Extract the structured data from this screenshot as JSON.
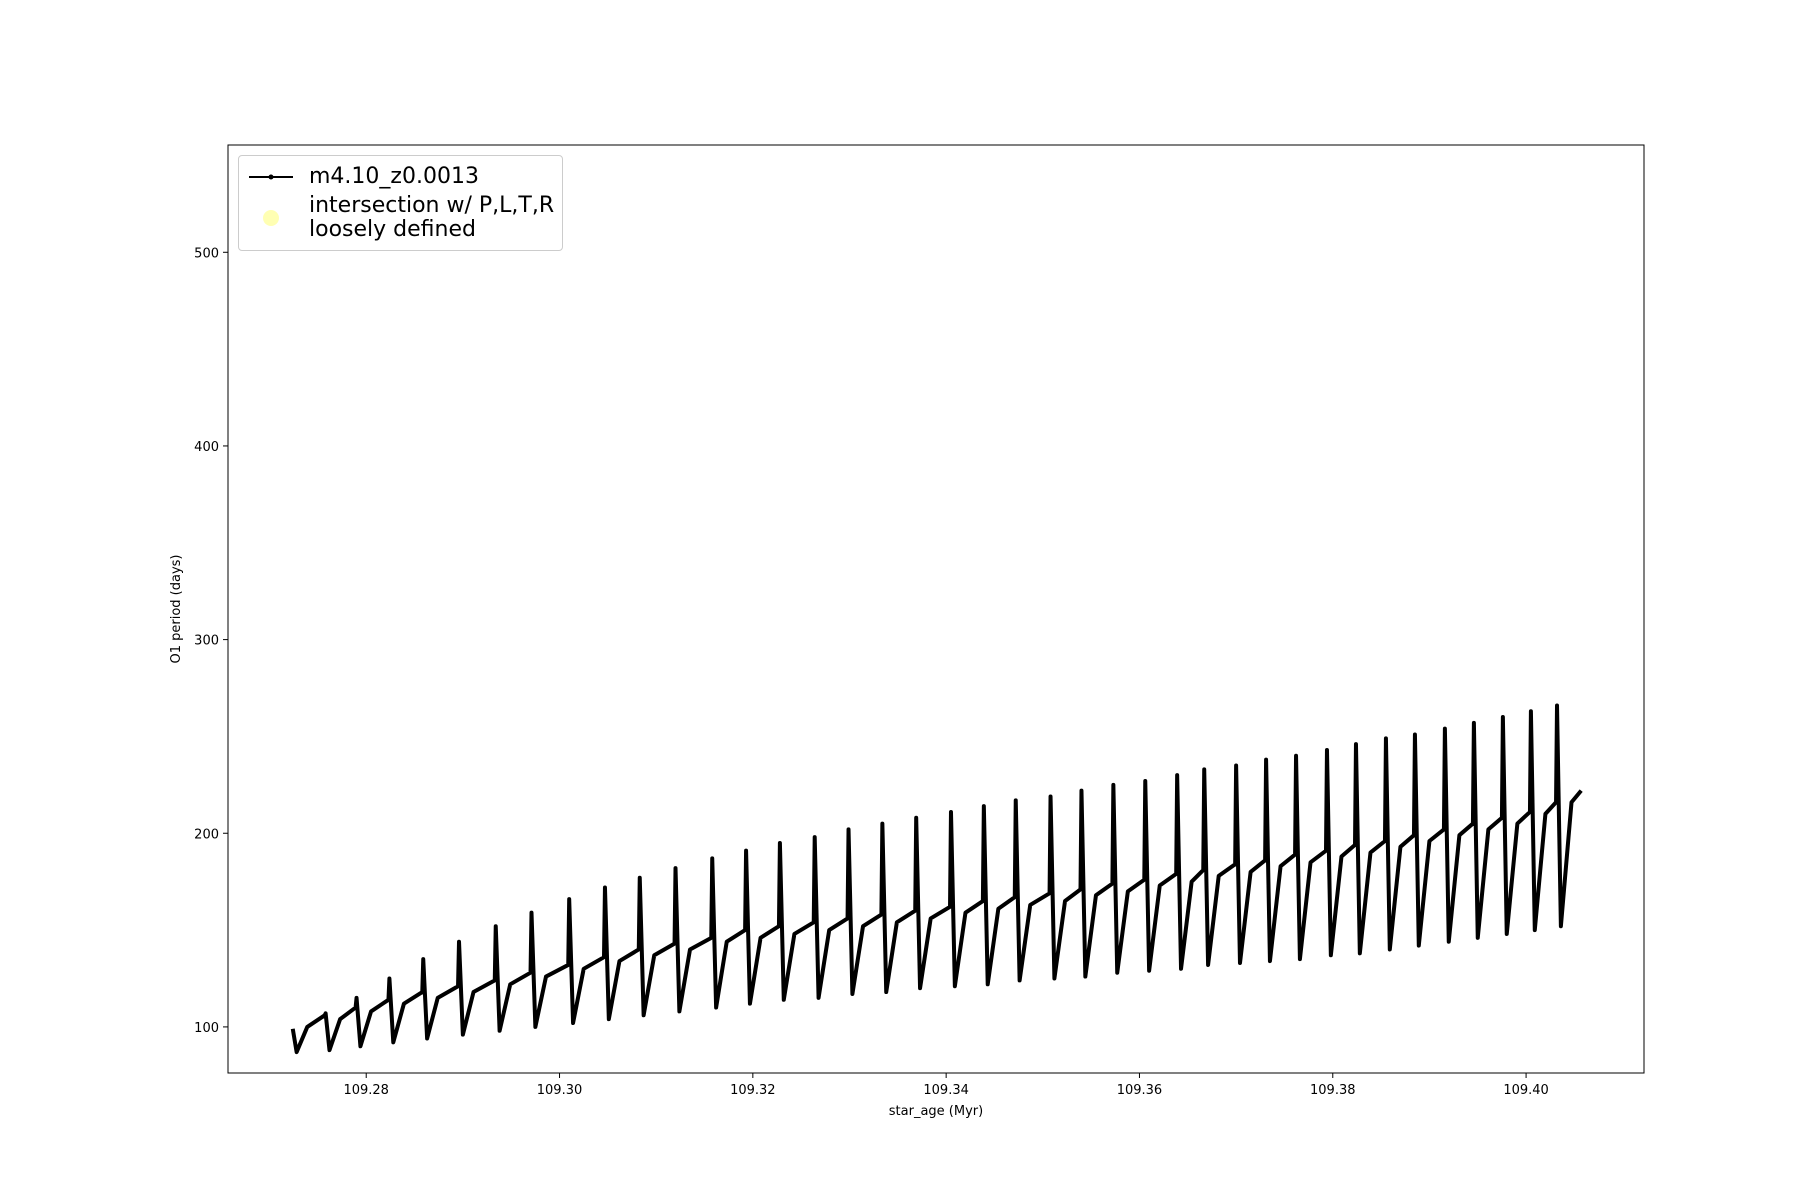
{
  "chart_data": {
    "type": "line",
    "xlabel": "star_age (Myr)",
    "ylabel": "O1 period (days)",
    "xlim": [
      109.2657,
      109.4122
    ],
    "ylim": [
      76.2,
      555.4
    ],
    "xticks": [
      109.28,
      {
        "value": 109.3,
        "label": "109.30"
      },
      109.32,
      109.34,
      109.36,
      109.38,
      {
        "value": 109.4,
        "label": "109.40"
      }
    ],
    "yticks": [
      100,
      200,
      300,
      400,
      500
    ],
    "grid": false,
    "legend": "upper left",
    "x": [
      109.2724,
      109.2728,
      109.2739,
      109.2757,
      109.2758,
      109.2762,
      109.2773,
      109.2789,
      109.279,
      109.2794,
      109.2805,
      109.2823,
      109.2824,
      109.2828,
      109.2839,
      109.2858,
      109.2859,
      109.2863,
      109.2874,
      109.2895,
      109.2896,
      109.29,
      109.2911,
      109.2933,
      109.2934,
      109.2938,
      109.2949,
      109.297,
      109.2971,
      109.2975,
      109.2986,
      109.3009,
      109.301,
      109.3014,
      109.3025,
      109.3046,
      109.3047,
      109.3051,
      109.3062,
      109.3082,
      109.3083,
      109.3087,
      109.3098,
      109.3119,
      109.312,
      109.3124,
      109.3135,
      109.3157,
      109.3158,
      109.3162,
      109.3173,
      109.3192,
      109.3193,
      109.3197,
      109.3208,
      109.3227,
      109.3228,
      109.3232,
      109.3243,
      109.3263,
      109.3264,
      109.3268,
      109.3279,
      109.3298,
      109.3299,
      109.3303,
      109.3314,
      109.3333,
      109.3334,
      109.3338,
      109.3349,
      109.3368,
      109.3369,
      109.3373,
      109.3384,
      109.3404,
      109.3405,
      109.3409,
      109.342,
      109.3438,
      109.3439,
      109.3443,
      109.3454,
      109.3471,
      109.3472,
      109.3476,
      109.3487,
      109.3507,
      109.3508,
      109.3512,
      109.3523,
      109.3539,
      109.354,
      109.3544,
      109.3555,
      109.3572,
      109.3573,
      109.3577,
      109.3588,
      109.3605,
      109.3606,
      109.361,
      109.3621,
      109.3638,
      109.3639,
      109.3643,
      109.3654,
      109.3666,
      109.3667,
      109.3671,
      109.3682,
      109.3699,
      109.37,
      109.3704,
      109.3715,
      109.373,
      109.3731,
      109.3735,
      109.3746,
      109.3761,
      109.3762,
      109.3766,
      109.3777,
      109.3793,
      109.3794,
      109.3798,
      109.3809,
      109.3823,
      109.3824,
      109.3828,
      109.3839,
      109.3854,
      109.3855,
      109.3859,
      109.387,
      109.3884,
      109.3885,
      109.3889,
      109.39,
      109.3915,
      109.3916,
      109.392,
      109.3931,
      109.3945,
      109.3946,
      109.395,
      109.3961,
      109.3975,
      109.3976,
      109.398,
      109.3991,
      109.4004,
      109.4005,
      109.4009,
      109.402,
      109.4031,
      109.4032,
      109.4036,
      109.4047,
      109.4057
    ],
    "series": [
      {
        "name": "m4.10_z0.0013",
        "color": "#000000",
        "values": [
          99,
          87,
          100,
          106,
          107,
          88,
          104,
          110,
          115,
          90,
          108,
          114,
          125,
          92,
          112,
          118,
          135,
          94,
          115,
          121,
          144,
          96,
          118,
          124,
          152,
          98,
          122,
          128,
          159,
          100,
          126,
          132,
          166,
          102,
          130,
          136,
          172,
          104,
          134,
          140,
          177,
          106,
          137,
          143,
          182,
          108,
          140,
          146,
          187,
          110,
          144,
          150,
          191,
          112,
          146,
          152,
          195,
          114,
          148,
          154,
          198,
          115,
          150,
          156,
          202,
          117,
          152,
          158,
          205,
          118,
          154,
          160,
          208,
          120,
          156,
          162,
          211,
          121,
          159,
          165,
          214,
          122,
          161,
          167,
          217,
          124,
          163,
          169,
          219,
          125,
          165,
          171,
          222,
          126,
          168,
          174,
          225,
          128,
          170,
          176,
          227,
          129,
          173,
          179,
          230,
          130,
          175,
          181,
          233,
          132,
          178,
          184,
          235,
          133,
          180,
          186,
          238,
          134,
          183,
          189,
          240,
          135,
          185,
          191,
          243,
          137,
          188,
          194,
          246,
          138,
          190,
          196,
          249,
          140,
          193,
          199,
          251,
          142,
          196,
          202,
          254,
          144,
          199,
          205,
          257,
          146,
          202,
          208,
          260,
          148,
          205,
          211,
          263,
          150,
          210,
          216,
          266,
          152,
          216,
          222
        ]
      },
      {
        "name": "intersection w/ P,L,T,R\nloosely defined",
        "color": "#ffffb3",
        "type": "scatter",
        "x": [],
        "values": []
      }
    ]
  }
}
